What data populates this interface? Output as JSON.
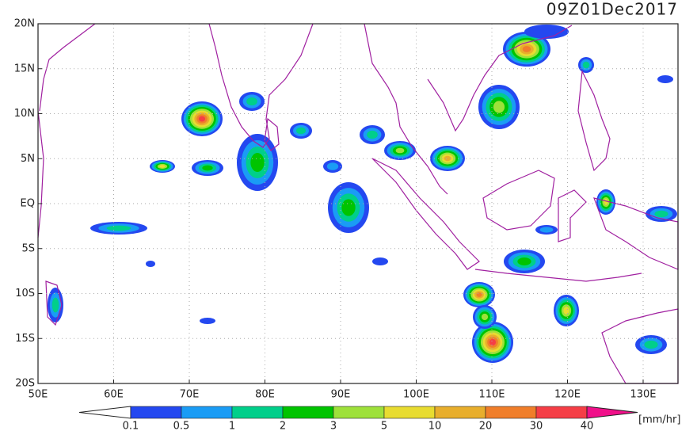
{
  "title": "09Z01Dec2017",
  "lat_labels": [
    "20N",
    "15N",
    "10N",
    "5N",
    "EQ",
    "5S",
    "10S",
    "15S",
    "20S"
  ],
  "lon_labels": [
    "50E",
    "60E",
    "70E",
    "80E",
    "90E",
    "100E",
    "110E",
    "120E",
    "130E"
  ],
  "colorbar": {
    "labels": [
      "0.1",
      "0.5",
      "1",
      "2",
      "3",
      "5",
      "10",
      "20",
      "30",
      "40"
    ],
    "colors": [
      "#ffffff",
      "#2448f0",
      "#1a9cf5",
      "#00cf8a",
      "#00c400",
      "#9ee13a",
      "#e8dc30",
      "#e8ae2c",
      "#f07e2a",
      "#f53e46",
      "#f0108a"
    ],
    "unit": "[mm/hr]"
  }
}
